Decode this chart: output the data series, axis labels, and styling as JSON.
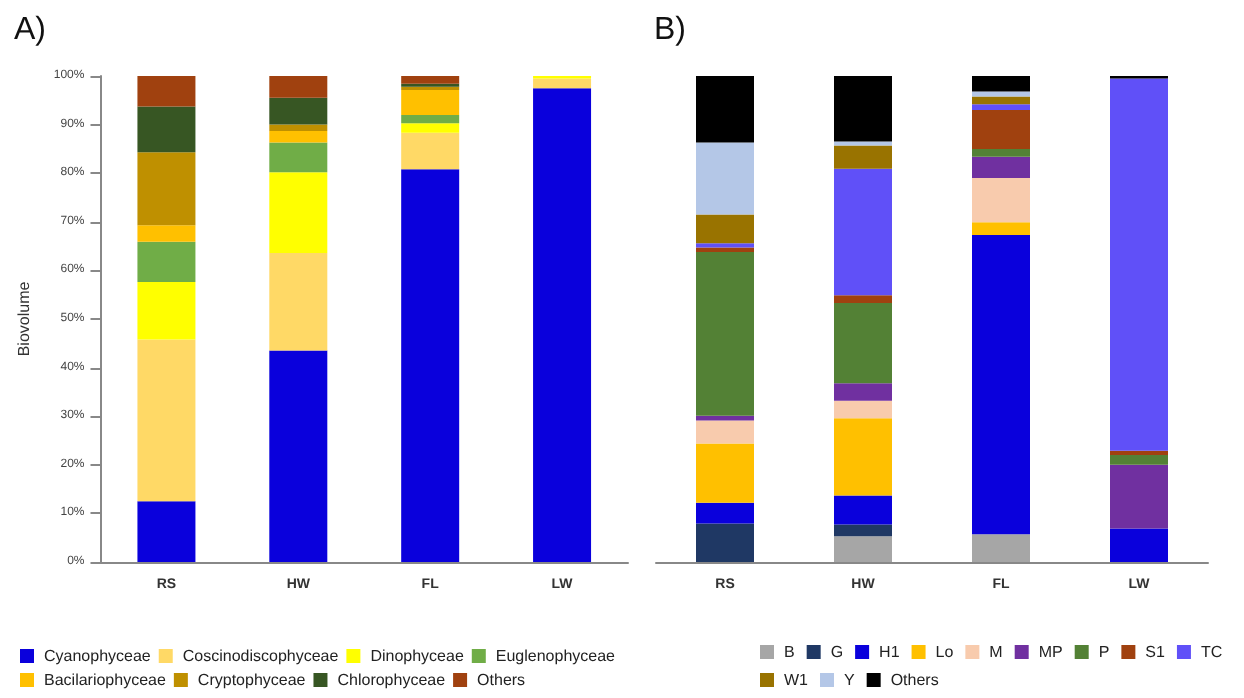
{
  "chart_data": [
    {
      "type": "bar",
      "title": "A)",
      "ylabel": "Biovolume",
      "stacked": true,
      "legend": "bottom",
      "grid": false,
      "categories": [
        "RS",
        "HW",
        "FL",
        "LW"
      ],
      "ylim": [
        0,
        100
      ],
      "yticks": [
        {
          "value": 0,
          "label": "0%"
        },
        {
          "value": 10,
          "label": "10%"
        },
        {
          "value": 20,
          "label": "20%"
        },
        {
          "value": 30,
          "label": "30%"
        },
        {
          "value": 40,
          "label": "40%"
        },
        {
          "value": 50,
          "label": "50%"
        },
        {
          "value": 60,
          "label": "60%"
        },
        {
          "value": 70,
          "label": "70%"
        },
        {
          "value": 80,
          "label": "80%"
        },
        {
          "value": 90,
          "label": "90%"
        },
        {
          "value": 100,
          "label": "100%"
        }
      ],
      "series": [
        {
          "name": "Cyanophyceae",
          "color": "#0a00dc",
          "values": [
            12.5,
            43.5,
            80.8,
            97.5
          ]
        },
        {
          "name": "Coscinodiscophyceae",
          "color": "#ffd966",
          "values": [
            33.3,
            20.1,
            7.5,
            2.0
          ]
        },
        {
          "name": "Dinophyceae",
          "color": "#ffff00",
          "values": [
            11.8,
            16.6,
            2.0,
            0.5
          ]
        },
        {
          "name": "Euglenophyceae",
          "color": "#70ad47",
          "values": [
            8.3,
            6.1,
            1.7,
            0
          ]
        },
        {
          "name": "Bacilariophyceae",
          "color": "#ffc000",
          "values": [
            3.4,
            2.4,
            5.1,
            0
          ]
        },
        {
          "name": "Cryptophyceae",
          "color": "#bf9000",
          "values": [
            15.0,
            1.3,
            0.7,
            0
          ]
        },
        {
          "name": "Chlorophyceae",
          "color": "#375623",
          "values": [
            9.4,
            5.5,
            0.6,
            0
          ]
        },
        {
          "name": "Others",
          "color": "#a0410f",
          "values": [
            6.3,
            4.5,
            1.6,
            0
          ]
        }
      ]
    },
    {
      "type": "bar",
      "title": "B)",
      "stacked": true,
      "legend": "bottom",
      "grid": false,
      "tick_labels": "x",
      "categories": [
        "RS",
        "HW",
        "FL",
        "LW"
      ],
      "ylim": [
        0,
        100
      ],
      "series": [
        {
          "name": "B",
          "color": "#a6a6a6",
          "values": [
            0,
            5.3,
            5.7,
            0
          ]
        },
        {
          "name": "G",
          "color": "#1f3864",
          "values": [
            7.9,
            2.4,
            0,
            0
          ]
        },
        {
          "name": "H1",
          "color": "#0a00dc",
          "values": [
            4.3,
            6.0,
            61.6,
            6.9
          ]
        },
        {
          "name": "Lo",
          "color": "#ffc000",
          "values": [
            12.2,
            15.9,
            2.6,
            0
          ]
        },
        {
          "name": "M",
          "color": "#f8cbad",
          "values": [
            4.7,
            3.6,
            9.1,
            0
          ]
        },
        {
          "name": "MP",
          "color": "#7030a0",
          "values": [
            1.0,
            3.6,
            4.4,
            13.1
          ]
        },
        {
          "name": "P",
          "color": "#538135",
          "values": [
            33.7,
            16.5,
            1.6,
            2.0
          ]
        },
        {
          "name": "S1",
          "color": "#a0410f",
          "values": [
            0.9,
            1.6,
            8.0,
            0.9
          ]
        },
        {
          "name": "TC",
          "color": "#6050f8",
          "values": [
            0.9,
            26.0,
            1.2,
            76.6
          ]
        },
        {
          "name": "W1",
          "color": "#997300",
          "values": [
            5.9,
            4.8,
            1.6,
            0
          ]
        },
        {
          "name": "Y",
          "color": "#b4c7e7",
          "values": [
            14.8,
            0.8,
            1.0,
            0
          ]
        },
        {
          "name": "Others",
          "color": "#000000",
          "values": [
            13.7,
            13.5,
            3.2,
            0.5
          ]
        }
      ]
    }
  ]
}
